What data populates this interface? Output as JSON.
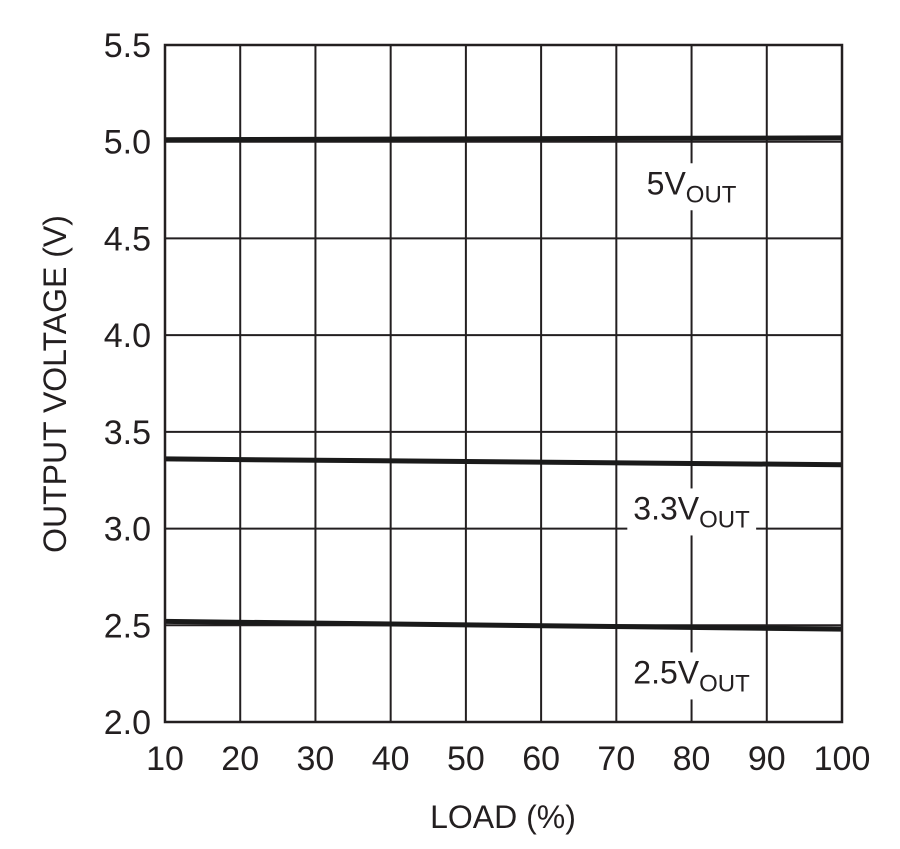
{
  "chart_data": {
    "type": "line",
    "title": "",
    "xlabel": "LOAD (%)",
    "ylabel": "OUTPUT VOLTAGE (V)",
    "xlim": [
      10,
      100
    ],
    "ylim": [
      2.0,
      5.5
    ],
    "x_ticks": [
      10,
      20,
      30,
      40,
      50,
      60,
      70,
      80,
      90,
      100
    ],
    "y_ticks": [
      "2.0",
      "2.5",
      "3.0",
      "3.5",
      "4.0",
      "4.5",
      "5.0",
      "5.5"
    ],
    "grid": true,
    "series": [
      {
        "label_main": "5V",
        "label_sub": "OUT",
        "x": [
          10,
          100
        ],
        "y": [
          5.01,
          5.02
        ]
      },
      {
        "label_main": "3.3V",
        "label_sub": "OUT",
        "x": [
          10,
          100
        ],
        "y": [
          3.36,
          3.33
        ]
      },
      {
        "label_main": "2.5V",
        "label_sub": "OUT",
        "x": [
          10,
          100
        ],
        "y": [
          2.52,
          2.48
        ]
      }
    ],
    "colors": {
      "line": "#1a1a1a",
      "grid": "#231f20",
      "text": "#231f20"
    }
  }
}
